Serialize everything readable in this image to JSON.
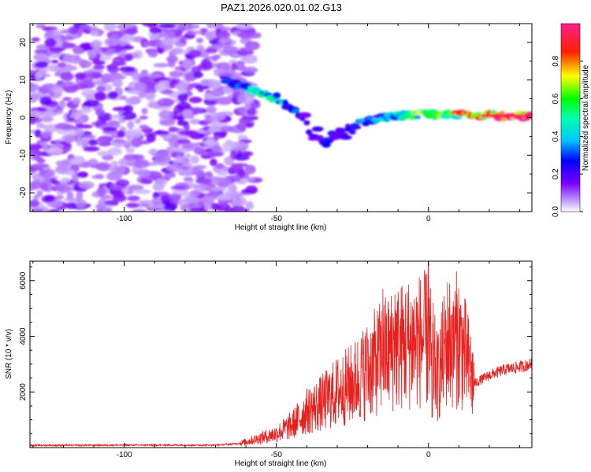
{
  "title": "PAZ1.2026.020.01.02.G13",
  "colors": {
    "snr_line": "#e8201e",
    "blob_purple": "#8a2be2",
    "frame": "#000000"
  },
  "chart_data": [
    {
      "type": "heatmap",
      "name": "spectrogram",
      "xlabel": "Height of straight line (km)",
      "ylabel": "Frequency (Hz)",
      "xlim": [
        -131,
        34
      ],
      "ylim": [
        -25,
        25
      ],
      "xticks": [
        -100,
        -50,
        0
      ],
      "yticks": [
        -20,
        -10,
        0,
        10,
        20
      ],
      "colorbar": {
        "label": "Normalized spectral amplitude",
        "range": [
          0,
          1
        ],
        "ticks": [
          "0.0",
          "0.2",
          "0.4",
          "0.6",
          "0.8"
        ],
        "tick_values": [
          0.0,
          0.2,
          0.4,
          0.6,
          0.8
        ]
      },
      "ridge": {
        "description_points_km_hz": [
          [
            -67,
            10
          ],
          [
            -60,
            8
          ],
          [
            -52,
            6
          ],
          [
            -45,
            3
          ],
          [
            -40,
            -2
          ],
          [
            -35,
            -6
          ],
          [
            -28,
            -5
          ],
          [
            -22,
            -1
          ],
          [
            -15,
            0
          ],
          [
            -8,
            0.5
          ],
          [
            0,
            1
          ],
          [
            10,
            0.5
          ],
          [
            20,
            0.5
          ],
          [
            34,
            0.5
          ]
        ],
        "amplitude": [
          0.25,
          0.35,
          0.5,
          0.3,
          0.2,
          0.25,
          0.2,
          0.3,
          0.35,
          0.45,
          0.6,
          0.7,
          0.8,
          0.98
        ]
      },
      "noise_region_km": [
        -131,
        -63
      ]
    },
    {
      "type": "line",
      "name": "snr",
      "xlabel": "Height of straight line (km)",
      "ylabel": "SNR (10 * v/v)",
      "xlim": [
        -131,
        34
      ],
      "ylim": [
        0,
        6700
      ],
      "xticks": [
        -100,
        -50,
        0
      ],
      "yticks": [
        2000,
        4000,
        6000
      ],
      "envelope_points": [
        [
          -131,
          80
        ],
        [
          -100,
          90
        ],
        [
          -70,
          90
        ],
        [
          -62,
          150
        ],
        [
          -55,
          350
        ],
        [
          -50,
          500
        ],
        [
          -45,
          800
        ],
        [
          -40,
          1300
        ],
        [
          -35,
          1600
        ],
        [
          -30,
          2000
        ],
        [
          -25,
          2300
        ],
        [
          -20,
          2800
        ],
        [
          -15,
          3300
        ],
        [
          -10,
          3600
        ],
        [
          -5,
          3800
        ],
        [
          0,
          3900
        ],
        [
          3,
          2500
        ],
        [
          6,
          3800
        ],
        [
          10,
          3900
        ],
        [
          13,
          3000
        ],
        [
          15,
          2300
        ],
        [
          20,
          2600
        ],
        [
          25,
          2800
        ],
        [
          30,
          2900
        ],
        [
          34,
          3000
        ]
      ],
      "peaks": [
        [
          -20,
          3900
        ],
        [
          -18,
          4100
        ],
        [
          -15,
          5700
        ],
        [
          -11,
          5500
        ],
        [
          -7,
          5600
        ],
        [
          0,
          6700
        ],
        [
          8,
          4800
        ],
        [
          10,
          4600
        ]
      ]
    }
  ]
}
